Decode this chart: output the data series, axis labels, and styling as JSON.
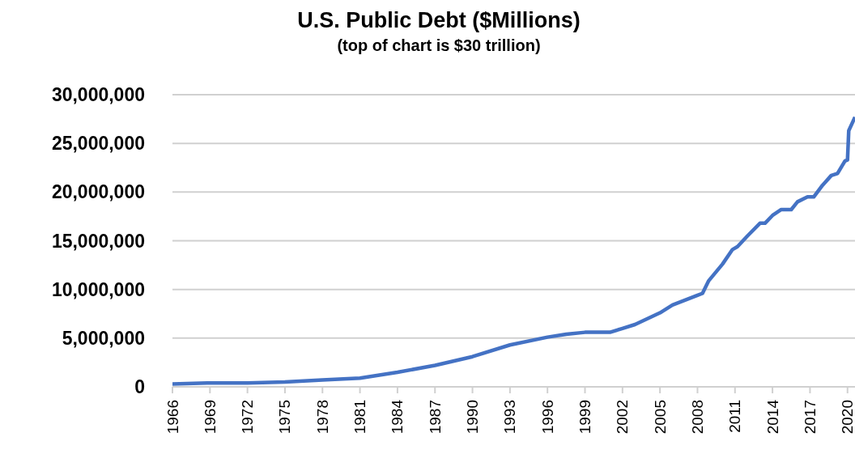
{
  "chart_data": {
    "type": "line",
    "title": "U.S. Public Debt ($Millions)",
    "subtitle": "(top of chart is $30 trillion)",
    "x": [
      1966,
      1969,
      1972,
      1975,
      1978,
      1981,
      1984,
      1987,
      1990,
      1993,
      1996,
      1997.5,
      1999,
      2001,
      2002,
      2003,
      2005,
      2006,
      2008,
      2008.4,
      2008.9,
      2010,
      2010.8,
      2011.2,
      2012,
      2013,
      2013.4,
      2014,
      2014.7,
      2015.5,
      2016,
      2016.8,
      2017.3,
      2018,
      2018.7,
      2019.2,
      2019.8,
      2020,
      2020.1,
      2020.6
    ],
    "series": [
      {
        "color": "#4472c4",
        "values": [
          300000,
          400000,
          400000,
          500000,
          700000,
          900000,
          1500000,
          2200000,
          3100000,
          4300000,
          5100000,
          5400000,
          5600000,
          5600000,
          6000000,
          6400000,
          7600000,
          8400000,
          9400000,
          9600000,
          10900000,
          12600000,
          14100000,
          14400000,
          15500000,
          16800000,
          16800000,
          17600000,
          18200000,
          18200000,
          19000000,
          19500000,
          19500000,
          20700000,
          21700000,
          21900000,
          23200000,
          23300000,
          26300000,
          27700000
        ]
      }
    ],
    "xlim": [
      1966,
      2020.6
    ],
    "xticks": [
      1966,
      1969,
      1972,
      1975,
      1978,
      1981,
      1984,
      1987,
      1990,
      1993,
      1996,
      1999,
      2002,
      2005,
      2008,
      2011,
      2014,
      2017,
      2020
    ],
    "ylim": [
      0,
      30000000
    ],
    "yticks": [
      {
        "value": 0,
        "label": "0"
      },
      {
        "value": 5000000,
        "label": "5,000,000"
      },
      {
        "value": 10000000,
        "label": "10,000,000"
      },
      {
        "value": 15000000,
        "label": "15,000,000"
      },
      {
        "value": 20000000,
        "label": "20,000,000"
      },
      {
        "value": 25000000,
        "label": "25,000,000"
      },
      {
        "value": 30000000,
        "label": "30,000,000"
      }
    ],
    "grid": "y",
    "marker": "none",
    "line_style": "solid"
  }
}
